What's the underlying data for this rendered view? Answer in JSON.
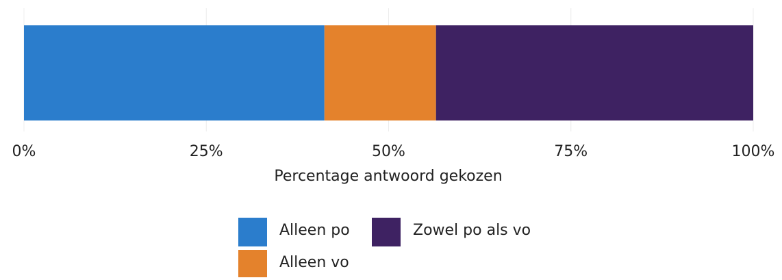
{
  "chart_data": {
    "type": "stacked_barh",
    "xlabel": "Percentage antwoord gekozen",
    "series": [
      {
        "name": "Alleen po",
        "color": "#2b7dcc",
        "values": [
          41.2
        ]
      },
      {
        "name": "Alleen vo",
        "color": "#e4822c",
        "values": [
          15.3
        ]
      },
      {
        "name": "Zowel po als vo",
        "color": "#3e2262",
        "values": [
          43.5
        ]
      }
    ],
    "xlim": [
      0,
      100
    ],
    "xticks": [
      {
        "value": 0,
        "label": "0%"
      },
      {
        "value": 25,
        "label": "25%"
      },
      {
        "value": 50,
        "label": "50%"
      },
      {
        "value": 75,
        "label": "75%"
      },
      {
        "value": 100,
        "label": "100%"
      }
    ],
    "grid": true,
    "legend": "bottom"
  }
}
